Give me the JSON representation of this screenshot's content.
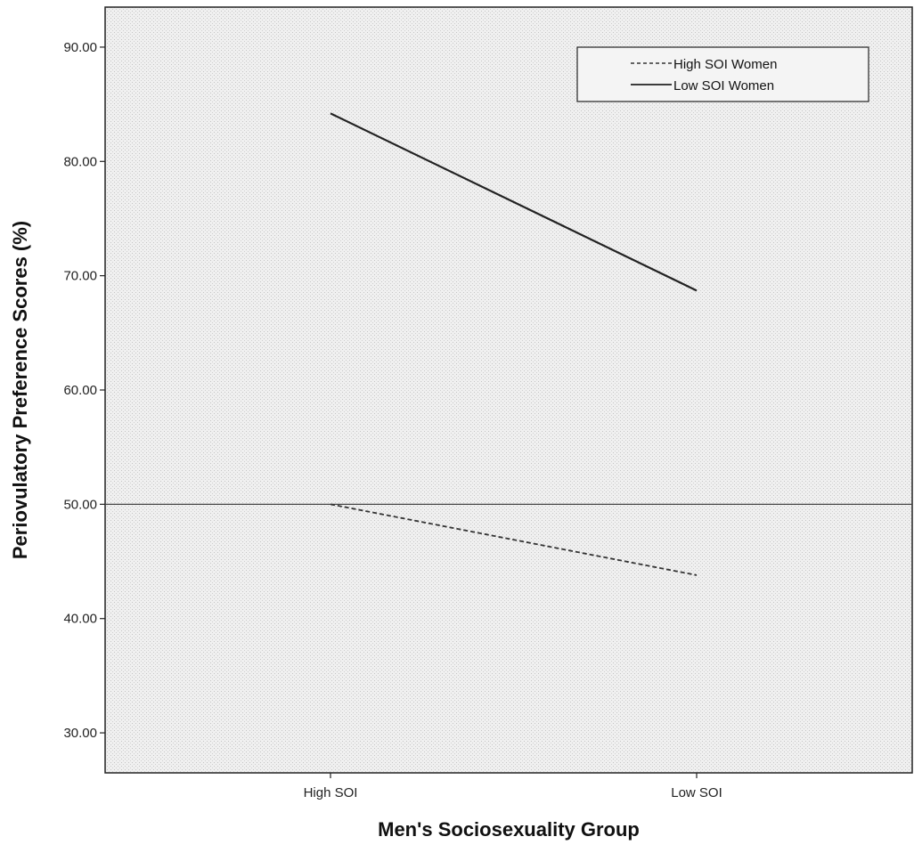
{
  "chart_data": {
    "type": "line",
    "title": "",
    "xlabel": "Men's Sociosexuality Group",
    "ylabel": "Periovulatory Preference Scores (%)",
    "categories": [
      "High SOI",
      "Low SOI"
    ],
    "ylim": [
      26.5,
      93.5
    ],
    "yticks": [
      30,
      40,
      50,
      60,
      70,
      80,
      90
    ],
    "ytick_labels": [
      "30.00",
      "40.00",
      "50.00",
      "60.00",
      "70.00",
      "80.00",
      "90.00"
    ],
    "reference_line": 50.0,
    "grid": false,
    "legend_position": "top-right",
    "series": [
      {
        "name": "High SOI Women",
        "style": "dashed",
        "color": "#333333",
        "values": [
          50.0,
          43.8
        ]
      },
      {
        "name": "Low SOI Women",
        "style": "solid",
        "color": "#222222",
        "values": [
          84.2,
          68.7
        ]
      }
    ]
  }
}
